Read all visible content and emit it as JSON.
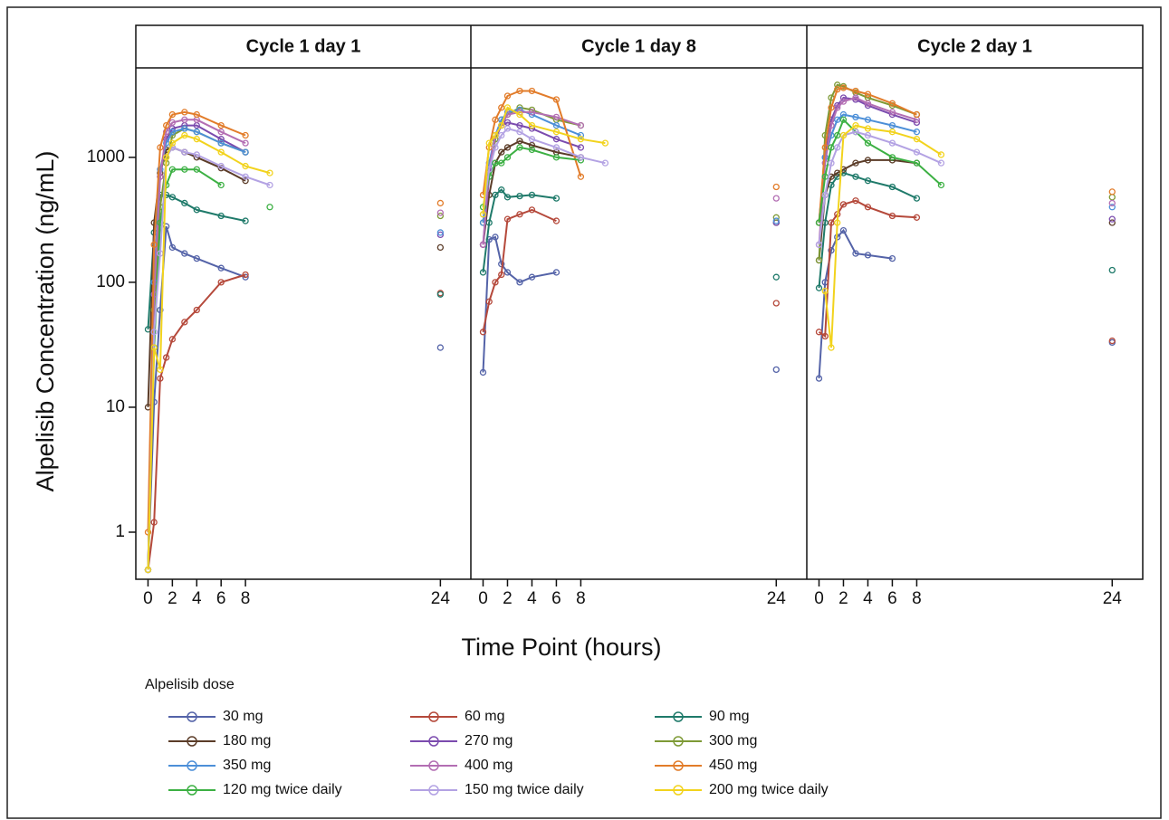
{
  "chart_data": [
    {
      "type": "line",
      "title": "Cycle 1 day 1",
      "ylabel": "Alpelisib Concentration (ng/mL)",
      "legend_title": "Alpelisib dose",
      "log_scale": true,
      "xlim": [
        -1,
        26.5
      ],
      "ylim": [
        0.42,
        5200
      ],
      "xticks": [
        0,
        2,
        4,
        6,
        8,
        24
      ],
      "yticks": [
        1,
        10,
        100,
        1000
      ],
      "x": [
        0,
        0.5,
        1,
        1.5,
        2,
        3,
        4,
        6,
        8,
        10,
        24
      ],
      "series": [
        {
          "name": "30 mg",
          "color": "#5463a8",
          "values": [
            0.5,
            11,
            60,
            280,
            190,
            170,
            155,
            130,
            110,
            null,
            30
          ]
        },
        {
          "name": "60 mg",
          "color": "#b5493b",
          "values": [
            0.5,
            1.2,
            17,
            25,
            35,
            48,
            60,
            100,
            115,
            null,
            82
          ]
        },
        {
          "name": "90 mg",
          "color": "#1f7a6a",
          "values": [
            42,
            250,
            500,
            500,
            480,
            430,
            380,
            340,
            310,
            null,
            80
          ]
        },
        {
          "name": "180 mg",
          "color": "#5b3c28",
          "values": [
            10,
            300,
            750,
            1150,
            1200,
            1100,
            1000,
            820,
            650,
            null,
            190
          ]
        },
        {
          "name": "270 mg",
          "color": "#7b4bae",
          "values": [
            0.5,
            100,
            700,
            1400,
            1700,
            1800,
            1800,
            1400,
            1100,
            null,
            240
          ]
        },
        {
          "name": "300 mg",
          "color": "#7e9a36",
          "values": [
            0.5,
            60,
            400,
            900,
            1500,
            1700,
            1600,
            1300,
            1100,
            null,
            340
          ]
        },
        {
          "name": "350 mg",
          "color": "#4c8fd8",
          "values": [
            0.5,
            100,
            800,
            1300,
            1600,
            1700,
            1600,
            1300,
            1100,
            null,
            250
          ]
        },
        {
          "name": "400 mg",
          "color": "#b36eb3",
          "values": [
            0.5,
            80,
            700,
            1600,
            1900,
            2000,
            2000,
            1600,
            1300,
            null,
            360
          ]
        },
        {
          "name": "450 mg",
          "color": "#e27c2a",
          "values": [
            1,
            200,
            1200,
            1800,
            2200,
            2300,
            2200,
            1800,
            1500,
            null,
            430
          ]
        },
        {
          "name": "120 mg twice daily",
          "color": "#3cb043",
          "values": [
            0.5,
            30,
            300,
            600,
            800,
            800,
            800,
            600,
            null,
            400,
            null
          ]
        },
        {
          "name": "150 mg twice daily",
          "color": "#b3a2e3",
          "values": [
            0.5,
            40,
            170,
            1000,
            1200,
            1100,
            1050,
            850,
            700,
            600,
            null
          ]
        },
        {
          "name": "200 mg twice daily",
          "color": "#f2d31d",
          "values": [
            0.5,
            30,
            20,
            1000,
            1300,
            1500,
            1400,
            1100,
            850,
            750,
            null
          ]
        }
      ]
    },
    {
      "type": "line",
      "title": "Cycle 1 day 8",
      "xlabel": "Time Point (hours)",
      "log_scale": true,
      "xlim": [
        -1,
        26.5
      ],
      "ylim": [
        0.42,
        5200
      ],
      "xticks": [
        0,
        2,
        4,
        6,
        8,
        24
      ],
      "x": [
        0,
        0.5,
        1,
        1.5,
        2,
        3,
        4,
        6,
        8,
        10,
        24
      ],
      "series": [
        {
          "name": "30 mg",
          "color": "#5463a8",
          "values": [
            19,
            220,
            230,
            140,
            120,
            100,
            110,
            120,
            null,
            null,
            20
          ]
        },
        {
          "name": "60 mg",
          "color": "#b5493b",
          "values": [
            40,
            70,
            100,
            115,
            320,
            350,
            380,
            310,
            null,
            null,
            68
          ]
        },
        {
          "name": "90 mg",
          "color": "#1f7a6a",
          "values": [
            120,
            300,
            500,
            550,
            480,
            490,
            500,
            470,
            null,
            null,
            110
          ]
        },
        {
          "name": "180 mg",
          "color": "#5b3c28",
          "values": [
            200,
            500,
            900,
            1100,
            1200,
            1350,
            1250,
            1100,
            1000,
            null,
            300
          ]
        },
        {
          "name": "270 mg",
          "color": "#7b4bae",
          "values": [
            200,
            700,
            1400,
            1800,
            1900,
            1800,
            1700,
            1400,
            1200,
            null,
            300
          ]
        },
        {
          "name": "300 mg",
          "color": "#7e9a36",
          "values": [
            300,
            800,
            1400,
            2000,
            2200,
            2500,
            2400,
            2000,
            1800,
            null,
            330
          ]
        },
        {
          "name": "350 mg",
          "color": "#4c8fd8",
          "values": [
            300,
            900,
            1500,
            2000,
            2300,
            2400,
            2200,
            1800,
            1500,
            null,
            310
          ]
        },
        {
          "name": "400 mg",
          "color": "#b36eb3",
          "values": [
            200,
            800,
            1500,
            1800,
            2200,
            2300,
            2300,
            2100,
            1800,
            null,
            470
          ]
        },
        {
          "name": "450 mg",
          "color": "#e27c2a",
          "values": [
            500,
            1200,
            2000,
            2500,
            3100,
            3400,
            3400,
            2900,
            700,
            null,
            580
          ]
        },
        {
          "name": "120 mg twice daily",
          "color": "#3cb043",
          "values": [
            400,
            700,
            900,
            900,
            1000,
            1200,
            1150,
            1000,
            950,
            null,
            null
          ]
        },
        {
          "name": "150 mg twice daily",
          "color": "#b3a2e3",
          "values": [
            350,
            800,
            1200,
            1500,
            1700,
            1600,
            1400,
            1200,
            1000,
            900,
            null
          ]
        },
        {
          "name": "200 mg twice daily",
          "color": "#f2d31d",
          "values": [
            350,
            1300,
            1500,
            1800,
            2500,
            2200,
            1800,
            1600,
            1400,
            1300,
            null
          ]
        }
      ]
    },
    {
      "type": "line",
      "title": "Cycle 2 day 1",
      "log_scale": true,
      "xlim": [
        -1,
        26.5
      ],
      "ylim": [
        0.42,
        5200
      ],
      "xticks": [
        0,
        2,
        4,
        6,
        8,
        24
      ],
      "x": [
        0,
        0.5,
        1,
        1.5,
        2,
        3,
        4,
        6,
        8,
        10,
        24
      ],
      "series": [
        {
          "name": "30 mg",
          "color": "#5463a8",
          "values": [
            17,
            100,
            180,
            230,
            260,
            170,
            165,
            155,
            null,
            null,
            33
          ]
        },
        {
          "name": "60 mg",
          "color": "#b5493b",
          "values": [
            40,
            37,
            300,
            350,
            420,
            450,
            400,
            340,
            330,
            null,
            34
          ]
        },
        {
          "name": "90 mg",
          "color": "#1f7a6a",
          "values": [
            90,
            300,
            600,
            700,
            750,
            700,
            650,
            580,
            470,
            null,
            125
          ]
        },
        {
          "name": "180 mg",
          "color": "#5b3c28",
          "values": [
            150,
            500,
            700,
            750,
            800,
            900,
            950,
            950,
            900,
            null,
            300
          ]
        },
        {
          "name": "270 mg",
          "color": "#7b4bae",
          "values": [
            300,
            1000,
            2000,
            2600,
            3000,
            2900,
            2600,
            2200,
            1900,
            null,
            320
          ]
        },
        {
          "name": "300 mg",
          "color": "#7e9a36",
          "values": [
            150,
            1500,
            3000,
            3800,
            3700,
            3300,
            3000,
            2600,
            2200,
            null,
            480
          ]
        },
        {
          "name": "350 mg",
          "color": "#4c8fd8",
          "values": [
            300,
            1000,
            1500,
            2000,
            2200,
            2100,
            2000,
            1800,
            1600,
            null,
            400
          ]
        },
        {
          "name": "400 mg",
          "color": "#b36eb3",
          "values": [
            200,
            900,
            1800,
            2500,
            2800,
            3000,
            2700,
            2300,
            2000,
            null,
            430
          ]
        },
        {
          "name": "450 mg",
          "color": "#e27c2a",
          "values": [
            300,
            1200,
            2500,
            3500,
            3600,
            3400,
            3200,
            2700,
            2200,
            null,
            530
          ]
        },
        {
          "name": "120 mg twice daily",
          "color": "#3cb043",
          "values": [
            300,
            700,
            1200,
            1500,
            2000,
            1600,
            1300,
            1000,
            900,
            600,
            null
          ]
        },
        {
          "name": "150 mg twice daily",
          "color": "#b3a2e3",
          "values": [
            200,
            500,
            900,
            1200,
            1500,
            1600,
            1500,
            1300,
            1100,
            900,
            null
          ]
        },
        {
          "name": "200 mg twice daily",
          "color": "#f2d31d",
          "values": [
            null,
            85,
            30,
            300,
            1500,
            1800,
            1700,
            1600,
            1400,
            1050,
            null
          ]
        }
      ]
    }
  ]
}
